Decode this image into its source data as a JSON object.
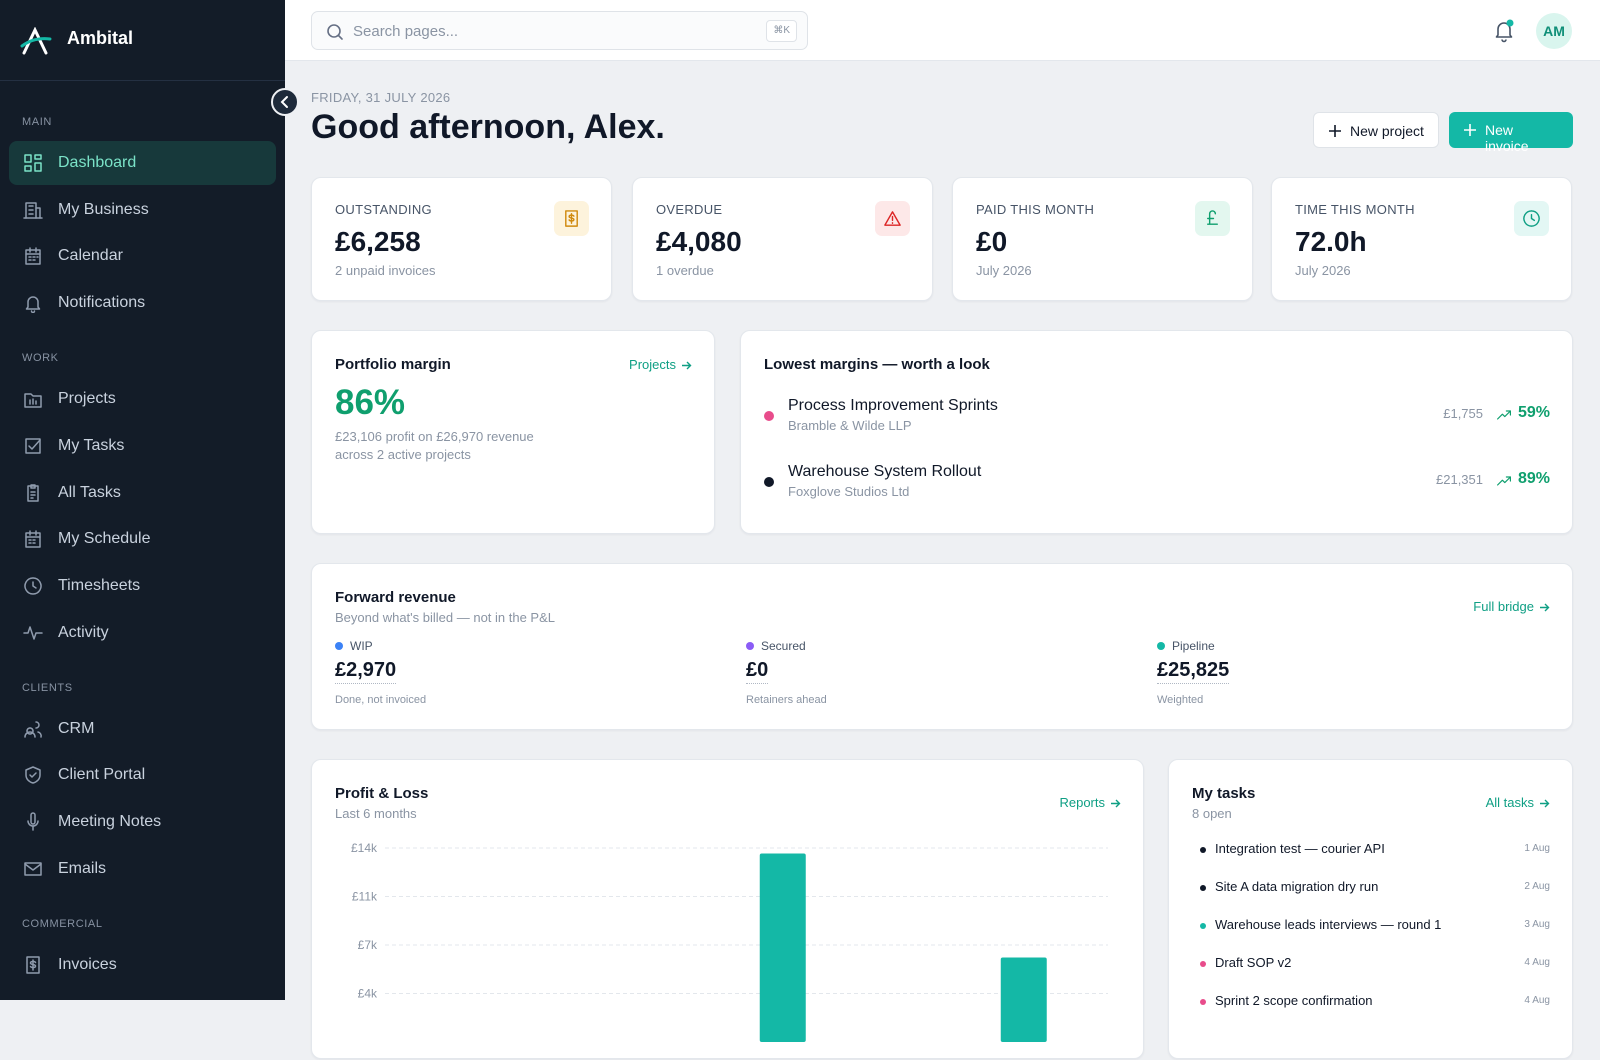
{
  "sidebar": {
    "brand": "Ambital",
    "sections": [
      {
        "title": "MAIN",
        "items": [
          "Dashboard",
          "My Business",
          "Calendar",
          "Notifications"
        ]
      },
      {
        "title": "WORK",
        "items": [
          "Projects",
          "My Tasks",
          "All Tasks",
          "My Schedule",
          "Timesheets",
          "Activity"
        ]
      },
      {
        "title": "CLIENTS",
        "items": [
          "CRM",
          "Client Portal",
          "Meeting Notes",
          "Emails"
        ]
      },
      {
        "title": "COMMERCIAL",
        "items": [
          "Invoices"
        ]
      }
    ]
  },
  "topbar": {
    "search_placeholder": "Search pages...",
    "shortcut": "⌘K",
    "avatar": "AM"
  },
  "header": {
    "date": "FRIDAY, 31 JULY 2026",
    "greeting": "Good afternoon, Alex.",
    "buttons": [
      "New project",
      "New invoice"
    ]
  },
  "kpis": [
    {
      "label": "OUTSTANDING",
      "value": "£6,258",
      "note": "2 unpaid invoices"
    },
    {
      "label": "OVERDUE",
      "value": "£4,080",
      "note": "1 overdue"
    },
    {
      "label": "PAID THIS MONTH",
      "value": "£0",
      "note": "July 2026"
    },
    {
      "label": "TIME THIS MONTH",
      "value": "72.0h",
      "note": "July 2026"
    }
  ],
  "portfolio": {
    "title": "Portfolio margin",
    "link": "Projects",
    "value": "86%",
    "note": [
      "£23,106 profit on £26,970 revenue",
      "across 2 active projects"
    ]
  },
  "lowest_margins": {
    "title": "Lowest margins — worth a look",
    "items": [
      {
        "name": "Process Improvement Sprints",
        "client": "Bramble & Wilde LLP",
        "amount": "£1,755",
        "margin": "59%",
        "color": "#e84c8b"
      },
      {
        "name": "Warehouse System Rollout",
        "client": "Foxglove Studios Ltd",
        "amount": "£21,351",
        "margin": "89%",
        "color": "#101828"
      }
    ]
  },
  "forward_revenue": {
    "title": "Forward revenue",
    "subtitle": "Beyond what's billed — not in the P&L",
    "link": "Full bridge",
    "items": [
      {
        "label": "WIP",
        "value": "£2,970",
        "note": "Done, not invoiced",
        "color": "#3b82f6"
      },
      {
        "label": "Secured",
        "value": "£0",
        "note": "Retainers ahead",
        "color": "#8b5cf6"
      },
      {
        "label": "Pipeline",
        "value": "£25,825",
        "note": "Weighted",
        "color": "#14b8a6"
      }
    ]
  },
  "chart_data": {
    "type": "bar",
    "title": "Profit & Loss",
    "subtitle": "Last 6 months",
    "link": "Reports",
    "categories": [
      null,
      null,
      null,
      null,
      null,
      null
    ],
    "values": [
      0,
      0,
      0,
      13600,
      0,
      6100
    ],
    "color": "#14b8a6",
    "ylim": [
      0,
      14000
    ],
    "yticks": [
      {
        "value": 14000,
        "label": "£14k"
      },
      {
        "value": 10500,
        "label": "£11k"
      },
      {
        "value": 7000,
        "label": "£7k"
      },
      {
        "value": 3500,
        "label": "£4k"
      }
    ],
    "grid": true
  },
  "tasks": {
    "title": "My tasks",
    "subtitle": "8 open",
    "link": "All tasks",
    "items": [
      {
        "text": "Integration test — courier API",
        "date": "1 Aug",
        "color": "#101828"
      },
      {
        "text": "Site A data migration dry run",
        "date": "2 Aug",
        "color": "#101828"
      },
      {
        "text": "Warehouse leads interviews — round 1",
        "date": "3 Aug",
        "color": "#14b8a6"
      },
      {
        "text": "Draft SOP v2",
        "date": "4 Aug",
        "color": "#e84c8b"
      },
      {
        "text": "Sprint 2 scope confirmation",
        "date": "4 Aug",
        "color": "#e84c8b"
      }
    ]
  }
}
